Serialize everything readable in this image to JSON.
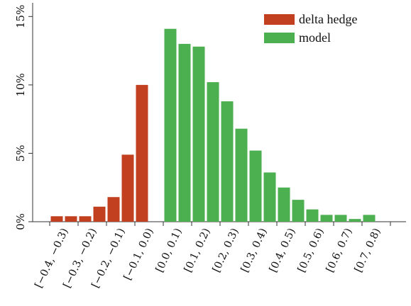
{
  "chart_data": {
    "type": "bar",
    "title": "",
    "xlabel": "",
    "ylabel": "",
    "categories": [
      "[−0.4, −0.3)",
      "[−0.3, −0.2)",
      "[−0.2, −0.1)",
      "[−0.1, 0.0)",
      "[0.0, 0.1)",
      "[0.1, 0.2)",
      "[0.2, 0.3)",
      "[0.3, 0.4)",
      "[0.4, 0.5)",
      "[0.5, 0.6)",
      "[0.6, 0.7)",
      "[0.7, 0.8)"
    ],
    "y_ticks": [
      "0%",
      "5%",
      "10%",
      "15%"
    ],
    "y_tick_values": [
      0,
      5,
      10,
      15
    ],
    "ylim": [
      0,
      16
    ],
    "xlim": [
      -0.4,
      0.8
    ],
    "grid": false,
    "legend_position": "top-right",
    "series": [
      {
        "name": "delta hedge",
        "color": "#c2401f",
        "bins": [
          {
            "x": -0.4,
            "values": [
              0.4,
              0.4
            ]
          },
          {
            "x": -0.3,
            "values": [
              0.4,
              1.1
            ]
          },
          {
            "x": -0.2,
            "values": [
              1.8,
              4.9
            ]
          },
          {
            "x": -0.1,
            "values": [
              10.0
            ]
          }
        ]
      },
      {
        "name": "model",
        "color": "#4caf50",
        "bins": [
          {
            "x": 0.0,
            "values": [
              14.1,
              13.0
            ]
          },
          {
            "x": 0.1,
            "values": [
              12.8,
              10.2
            ]
          },
          {
            "x": 0.2,
            "values": [
              8.8,
              6.8
            ]
          },
          {
            "x": 0.3,
            "values": [
              5.2,
              3.6
            ]
          },
          {
            "x": 0.4,
            "values": [
              2.5,
              1.6
            ]
          },
          {
            "x": 0.5,
            "values": [
              0.9,
              0.5
            ]
          },
          {
            "x": 0.6,
            "values": [
              0.5,
              0.2
            ]
          },
          {
            "x": 0.7,
            "values": [
              0.5
            ]
          }
        ]
      }
    ]
  }
}
